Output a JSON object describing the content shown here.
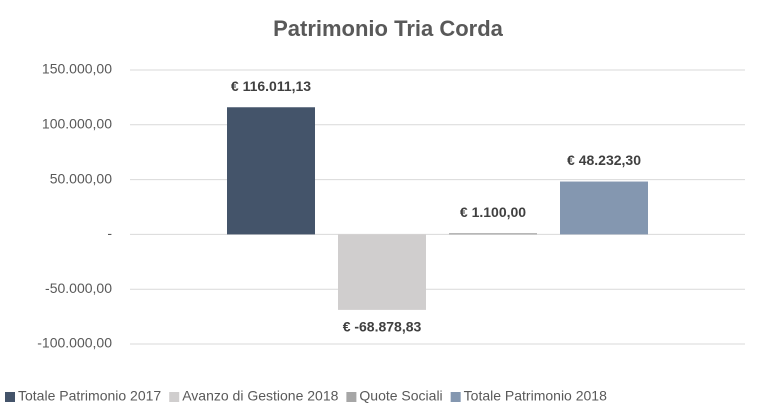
{
  "chart_data": {
    "type": "bar",
    "title": "Patrimonio Tria Corda",
    "categories": [
      null
    ],
    "series": [
      {
        "name": "Totale Patrimonio 2017",
        "color": "#44546a",
        "values": [
          116011.13
        ],
        "value_labels": [
          "€ 116.011,13"
        ]
      },
      {
        "name": "Avanzo di Gestione 2018",
        "color": "#d0cece",
        "values": [
          -68878.83
        ],
        "value_labels": [
          "€ -68.878,83"
        ]
      },
      {
        "name": "Quote Sociali",
        "color": "#a6a6a6",
        "values": [
          1100.0
        ],
        "value_labels": [
          "€ 1.100,00"
        ]
      },
      {
        "name": "Totale Patrimonio 2018",
        "color": "#8497b0",
        "values": [
          48232.3
        ],
        "value_labels": [
          "€ 48.232,30"
        ]
      }
    ],
    "ylim": [
      -100000,
      150000
    ],
    "yticks": [
      {
        "value": -100000,
        "label": "-100.000,00"
      },
      {
        "value": -50000,
        "label": "-50.000,00"
      },
      {
        "value": 0,
        "label": "-"
      },
      {
        "value": 50000,
        "label": "50.000,00"
      },
      {
        "value": 100000,
        "label": "100.000,00"
      },
      {
        "value": 150000,
        "label": "150.000,00"
      }
    ],
    "grid": true,
    "legend": "bottom"
  }
}
